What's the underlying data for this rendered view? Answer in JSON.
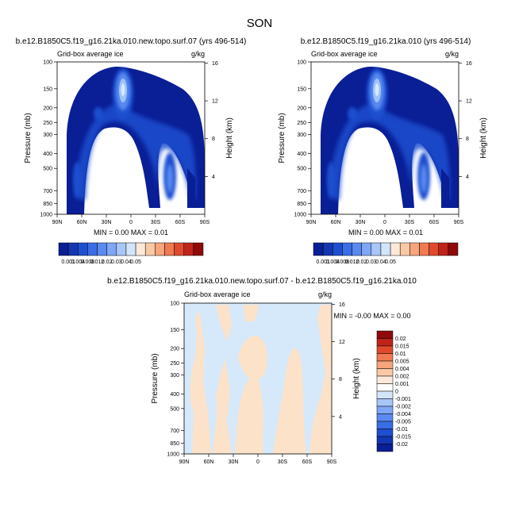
{
  "figure_title": "SON",
  "colors": {
    "deep_blue": "#0a1e96",
    "mid_blue": "#1e4fd0",
    "light_blue": "#5a8af0",
    "pale_blue": "#9fc3f7",
    "ice_blue": "#d6e9fb",
    "peach": "#fbe2c9"
  },
  "chart_data": [
    {
      "type": "contour",
      "title": "b.e12.B1850C5.f19_g16.21ka.010.new.topo.surf.07 (yrs 496-514)",
      "field_label": "Grid-box average ice",
      "units": "g/kg",
      "xlabel": "",
      "ylabel": "Pressure (mb)",
      "y2label": "Height (km)",
      "x_ticks": [
        "90N",
        "60N",
        "30N",
        "0",
        "30S",
        "60S",
        "90S"
      ],
      "x_range": [
        90,
        -90
      ],
      "y_ticks": [
        100,
        150,
        200,
        250,
        300,
        400,
        500,
        700,
        850,
        1000
      ],
      "y_range": [
        100,
        1000
      ],
      "height_ticks": [
        4,
        8,
        12,
        16
      ],
      "min_max": "MIN =   0.00  MAX =   0.01",
      "contour_levels": [
        0.001,
        0.004,
        0.008,
        0.012,
        0.02,
        0.03,
        0.04,
        0.05
      ],
      "colorbar_labels": [
        "0.001",
        "0.004",
        "0.008",
        "0.012",
        "0.02",
        "0.03",
        "0.04",
        "0.05"
      ],
      "colorbar_colors": [
        "#0a1e96",
        "#1436b0",
        "#1e4fd0",
        "#3a6ee6",
        "#5a8af0",
        "#7fa7f5",
        "#a9c6f8",
        "#d3e5fb",
        "#fde9d9",
        "#f9c9a6",
        "#f6a57c",
        "#f07a52",
        "#e04a2c",
        "#c0231a",
        "#8f0a0a"
      ]
    },
    {
      "type": "contour",
      "title": "b.e12.B1850C5.f19_g16.21ka.010 (yrs 496-514)",
      "field_label": "Grid-box average ice",
      "units": "g/kg",
      "xlabel": "",
      "ylabel": "Pressure (mb)",
      "y2label": "Height (km)",
      "x_ticks": [
        "90N",
        "60N",
        "30N",
        "0",
        "30S",
        "60S",
        "90S"
      ],
      "x_range": [
        90,
        -90
      ],
      "y_ticks": [
        100,
        150,
        200,
        250,
        300,
        400,
        500,
        700,
        850,
        1000
      ],
      "y_range": [
        100,
        1000
      ],
      "height_ticks": [
        4,
        8,
        12,
        16
      ],
      "min_max": "MIN =   0.00  MAX =   0.01",
      "contour_levels": [
        0.001,
        0.004,
        0.008,
        0.012,
        0.02,
        0.03,
        0.04,
        0.05
      ],
      "colorbar_labels": [
        "0.001",
        "0.004",
        "0.008",
        "0.012",
        "0.02",
        "0.03",
        "0.04",
        "0.05"
      ],
      "colorbar_colors": [
        "#0a1e96",
        "#1436b0",
        "#1e4fd0",
        "#3a6ee6",
        "#5a8af0",
        "#7fa7f5",
        "#a9c6f8",
        "#d3e5fb",
        "#fde9d9",
        "#f9c9a6",
        "#f6a57c",
        "#f07a52",
        "#e04a2c",
        "#c0231a",
        "#8f0a0a"
      ]
    },
    {
      "type": "contour",
      "title": "b.e12.B1850C5.f19_g16.21ka.010.new.topo.surf.07 - b.e12.B1850C5.f19_g16.21ka.010",
      "field_label": "Grid-box average ice",
      "units": "g/kg",
      "xlabel": "",
      "ylabel": "Pressure (mb)",
      "y2label": "Height (km)",
      "x_ticks": [
        "90N",
        "60N",
        "30N",
        "0",
        "30S",
        "60S",
        "90S"
      ],
      "x_range": [
        90,
        -90
      ],
      "y_ticks": [
        100,
        150,
        200,
        250,
        300,
        400,
        500,
        700,
        850,
        1000
      ],
      "y_range": [
        100,
        1000
      ],
      "height_ticks": [
        4,
        8,
        12,
        16
      ],
      "min_max": "MIN = -0.00  MAX =   0.00",
      "contour_levels": [
        -0.02,
        -0.015,
        -0.01,
        -0.005,
        -0.004,
        -0.002,
        -0.001,
        0,
        0.001,
        0.002,
        0.004,
        0.005,
        0.01,
        0.015,
        0.02
      ],
      "colorbar_labels": [
        "0.02",
        "0.015",
        "0.01",
        "0.005",
        "0.004",
        "0.002",
        "0.001",
        "0",
        "-0.001",
        "-0.002",
        "-0.004",
        "-0.005",
        "-0.01",
        "-0.015",
        "-0.02"
      ],
      "colorbar_colors": [
        "#8f0a0a",
        "#c0231a",
        "#e04a2c",
        "#f07a52",
        "#f6a57c",
        "#f9c9a6",
        "#fde9d9",
        "#ffffff",
        "#d3e5fb",
        "#a9c6f8",
        "#7fa7f5",
        "#5a8af0",
        "#3a6ee6",
        "#1e4fd0",
        "#1436b0",
        "#0a1e96"
      ]
    }
  ]
}
